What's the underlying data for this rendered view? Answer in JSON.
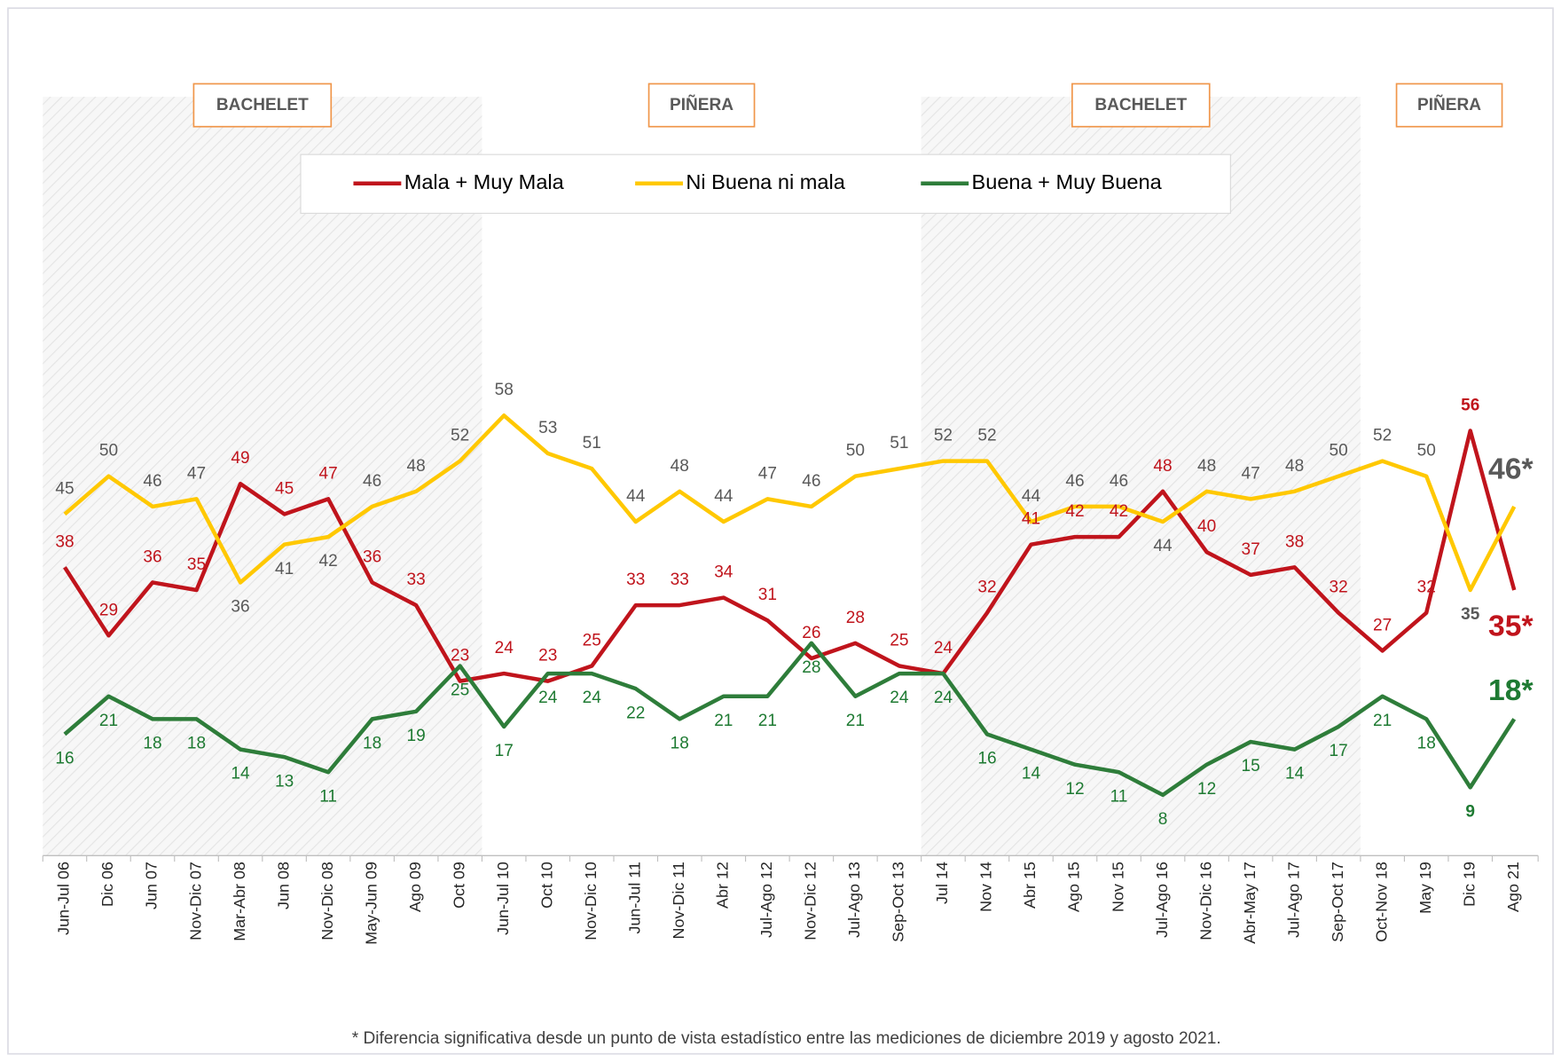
{
  "chart_data": {
    "type": "line",
    "periods": [
      "BACHELET",
      "PIÑERA",
      "BACHELET",
      "PIÑERA"
    ],
    "categories": [
      "Jun-Jul 06",
      "Dic 06",
      "Jun 07",
      "Nov-Dic 07",
      "Mar-Abr 08",
      "Jun 08",
      "Nov-Dic 08",
      "May-Jun 09",
      "Ago 09",
      "Oct 09",
      "Jun-Jul 10",
      "Oct 10",
      "Nov-Dic 10",
      "Jun-Jul 11",
      "Nov-Dic 11",
      "Abr 12",
      "Jul-Ago 12",
      "Nov-Dic 12",
      "Jul-Ago 13",
      "Sep-Oct 13",
      "Jul 14",
      "Nov 14",
      "Abr 15",
      "Ago 15",
      "Nov 15",
      "Jul-Ago 16",
      "Nov-Dic 16",
      "Abr-May 17",
      "Jul-Ago 17",
      "Sep-Oct 17",
      "Oct-Nov 18",
      "May 19",
      "Dic 19",
      "Ago 21"
    ],
    "series": [
      {
        "name": "Mala + Muy Mala",
        "color": "#c0141c",
        "label_color": "#c0141c",
        "values": [
          38,
          29,
          36,
          35,
          49,
          45,
          47,
          36,
          33,
          23,
          24,
          23,
          25,
          33,
          33,
          34,
          31,
          26,
          28,
          25,
          24,
          32,
          41,
          42,
          42,
          48,
          40,
          37,
          38,
          32,
          27,
          32,
          56,
          35
        ],
        "value_labels": [
          "38",
          "29",
          "36",
          "35",
          "49",
          "45",
          "47",
          "36",
          "33",
          "23",
          "24",
          "23",
          "25",
          "33",
          "33",
          "34",
          "31",
          "26",
          "28",
          "25",
          "24",
          "32",
          "41",
          "42",
          "42",
          "48",
          "40",
          "37",
          "38",
          "32",
          "27",
          "32",
          "56",
          "35*"
        ]
      },
      {
        "name": "Ni Buena ni mala",
        "color": "#ffc800",
        "label_color": "#595959",
        "values": [
          45,
          50,
          46,
          47,
          36,
          41,
          42,
          46,
          48,
          52,
          58,
          53,
          51,
          44,
          48,
          44,
          47,
          46,
          50,
          51,
          52,
          52,
          44,
          46,
          46,
          44,
          48,
          47,
          48,
          50,
          52,
          50,
          35,
          46
        ],
        "value_labels": [
          "45",
          "50",
          "46",
          "47",
          "36",
          "41",
          "42",
          "46",
          "48",
          "52",
          "58",
          "53",
          "51",
          "44",
          "48",
          "44",
          "47",
          "46",
          "50",
          "51",
          "52",
          "52",
          "44",
          "46",
          "46",
          "44",
          "48",
          "47",
          "48",
          "50",
          "52",
          "50",
          "35",
          "46*"
        ]
      },
      {
        "name": "Buena + Muy Buena",
        "color": "#2e7d3a",
        "label_color": "#1e7a32",
        "values": [
          16,
          21,
          18,
          18,
          14,
          13,
          11,
          18,
          19,
          25,
          17,
          24,
          24,
          22,
          18,
          21,
          21,
          28,
          21,
          24,
          24,
          16,
          14,
          12,
          11,
          8,
          12,
          15,
          14,
          17,
          21,
          18,
          9,
          18
        ],
        "value_labels": [
          "16",
          "21",
          "18",
          "18",
          "14",
          "13",
          "11",
          "18",
          "19",
          "25",
          "17",
          "24",
          "24",
          "22",
          "18",
          "21",
          "21",
          "28",
          "21",
          "24",
          "24",
          "16",
          "14",
          "12",
          "11",
          "8",
          "12",
          "15",
          "14",
          "17",
          "21",
          "18",
          "9",
          "18*"
        ]
      }
    ],
    "ylim": [
      0,
      100
    ],
    "footnote": "* Diferencia significativa desde un punto de vista estadístico entre las mediciones de diciembre 2019 y agosto 2021."
  }
}
